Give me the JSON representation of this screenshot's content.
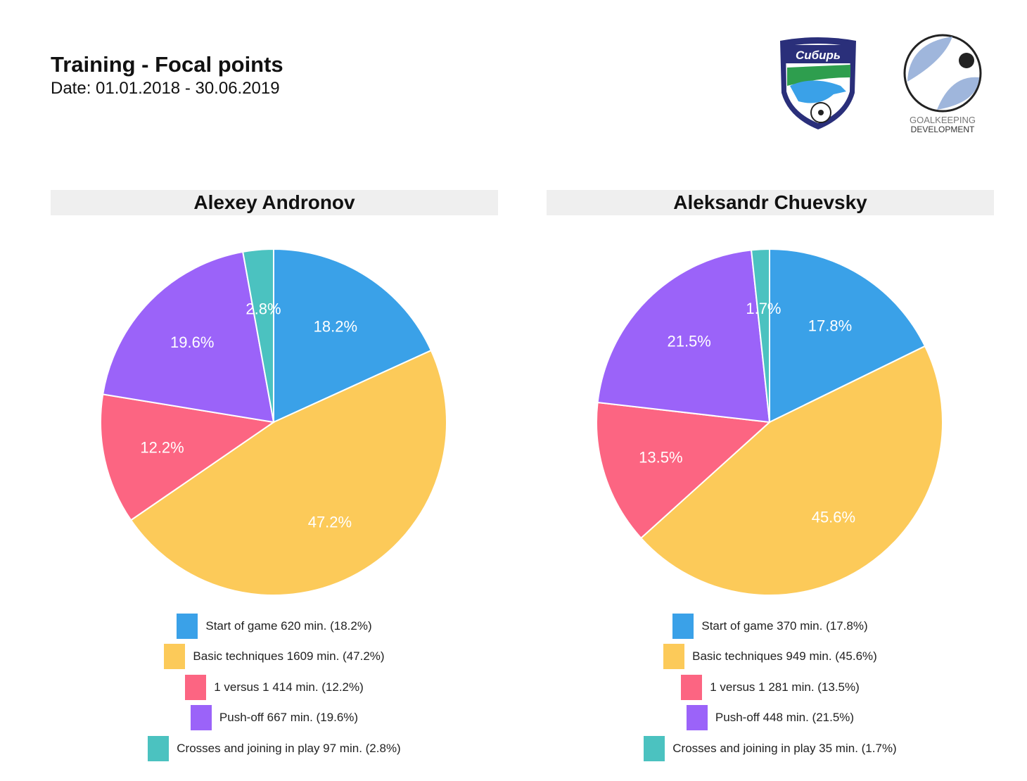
{
  "header": {
    "title": "Training - Focal points",
    "date": "Date: 01.01.2018 - 30.06.2019"
  },
  "logos": {
    "club": "Сибирь Новосибирск",
    "partner": "GOALKEEPING DEVELOPMENT"
  },
  "chart_data": [
    {
      "type": "pie",
      "title": "Alexey Andronov",
      "unit": "min.",
      "categories": [
        "Start of game",
        "Basic techniques",
        "1 versus 1",
        "Push-off",
        "Crosses and joining in play"
      ],
      "values": [
        620,
        1609,
        414,
        667,
        97
      ],
      "percent_labels": [
        "18.2%",
        "47.2%",
        "12.2%",
        "19.6%",
        "2.8%"
      ],
      "legend": [
        "Start of game 620 min. (18.2%)",
        "Basic techniques 1609 min. (47.2%)",
        "1 versus 1 414 min. (12.2%)",
        "Push-off 667 min. (19.6%)",
        "Crosses and joining in play 97 min. (2.8%)"
      ],
      "legend_position": "bottom"
    },
    {
      "type": "pie",
      "title": "Aleksandr Chuevsky",
      "unit": "min.",
      "categories": [
        "Start of game",
        "Basic techniques",
        "1 versus 1",
        "Push-off",
        "Crosses and joining in play"
      ],
      "values": [
        370,
        949,
        281,
        448,
        35
      ],
      "percent_labels": [
        "17.8%",
        "45.6%",
        "13.5%",
        "21.5%",
        "1.7%"
      ],
      "legend": [
        "Start of game 370 min. (17.8%)",
        "Basic techniques 949 min. (45.6%)",
        "1 versus 1 281 min. (13.5%)",
        "Push-off 448 min. (21.5%)",
        "Crosses and joining in play 35 min. (1.7%)"
      ],
      "legend_position": "bottom"
    }
  ],
  "colors": [
    "#3aa1e8",
    "#fcca59",
    "#fc6582",
    "#9b63f9",
    "#4bc2c0"
  ]
}
